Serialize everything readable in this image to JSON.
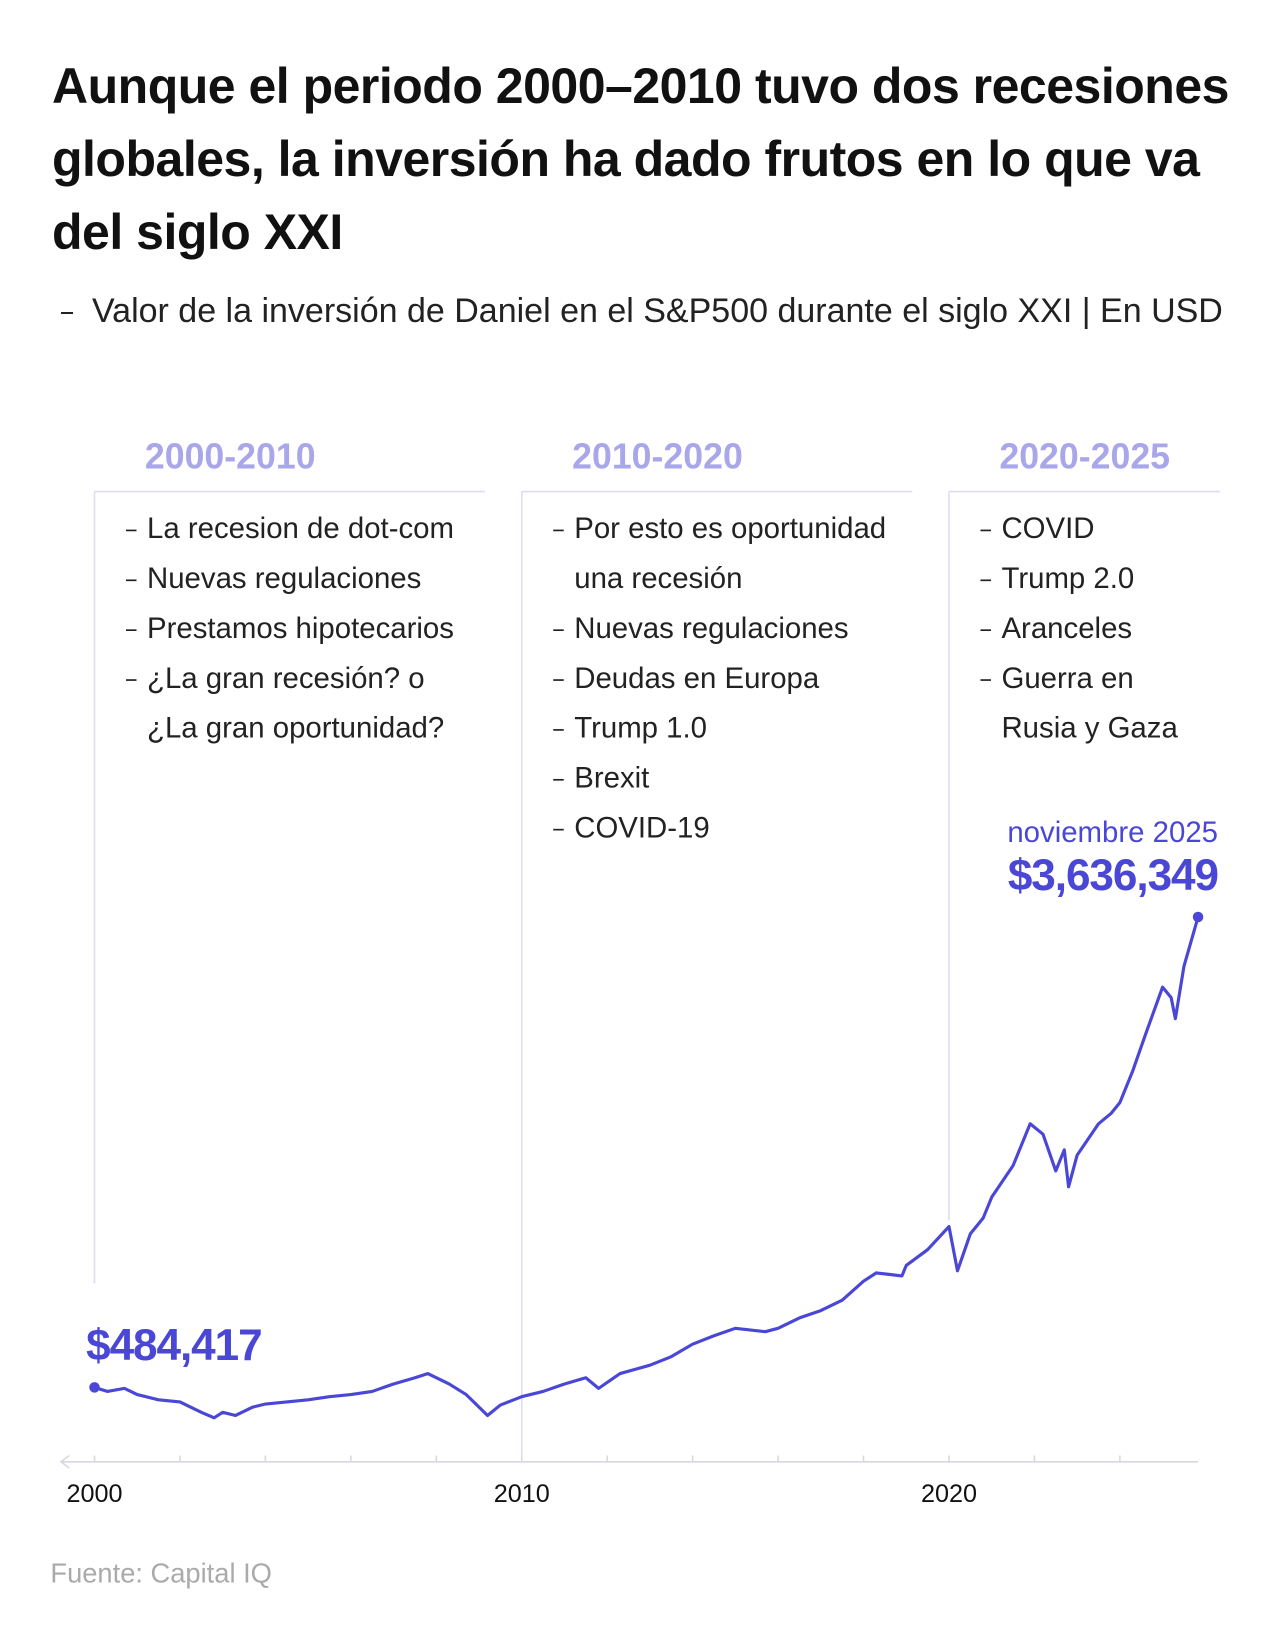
{
  "title": "Aunque el periodo 2000–2010 tuvo dos recesiones globales, la inversión ha dado frutos en lo que va del siglo XXI",
  "subtitle": "Valor de la inversión de Daniel en el S&P500 durante el siglo XXI | En USD",
  "source": "Fuente: Capital IQ",
  "chart_data": {
    "type": "line",
    "x": [
      2000.0,
      2000.3,
      2000.7,
      2001.0,
      2001.5,
      2002.0,
      2002.5,
      2002.8,
      2003.0,
      2003.3,
      2003.7,
      2004.0,
      2004.5,
      2005.0,
      2005.5,
      2006.0,
      2006.5,
      2007.0,
      2007.5,
      2007.8,
      2008.3,
      2008.7,
      2009.0,
      2009.2,
      2009.5,
      2010.0,
      2010.5,
      2011.0,
      2011.5,
      2011.8,
      2012.3,
      2013.0,
      2013.5,
      2014.0,
      2014.5,
      2015.0,
      2015.7,
      2016.0,
      2016.5,
      2017.0,
      2017.5,
      2018.0,
      2018.3,
      2018.9,
      2019.0,
      2019.5,
      2020.0,
      2020.2,
      2020.5,
      2020.8,
      2021.0,
      2021.5,
      2021.9,
      2022.2,
      2022.5,
      2022.7,
      2022.8,
      2023.0,
      2023.5,
      2023.8,
      2024.0,
      2024.3,
      2024.6,
      2025.0,
      2025.2,
      2025.3,
      2025.5,
      2025.83
    ],
    "series": [
      {
        "color": "#4a47d6",
        "values": [
          484417,
          457000,
          478000,
          436000,
          401000,
          387000,
          317000,
          281000,
          317000,
          296000,
          352000,
          373000,
          387000,
          401000,
          422000,
          436000,
          457000,
          507000,
          549000,
          577000,
          507000,
          436000,
          352000,
          296000,
          366000,
          422000,
          457000,
          507000,
          549000,
          478000,
          577000,
          633000,
          690000,
          774000,
          830000,
          880000,
          858000,
          880000,
          950000,
          999000,
          1069000,
          1196000,
          1252000,
          1231000,
          1302000,
          1407000,
          1562000,
          1266000,
          1513000,
          1618000,
          1759000,
          1970000,
          2251000,
          2181000,
          1935000,
          2076000,
          1829000,
          2040000,
          2251000,
          2322000,
          2392000,
          2603000,
          2850000,
          3166000,
          3096000,
          2955000,
          3307000,
          3636349
        ]
      }
    ],
    "annotations": [
      {
        "label": "$484,417",
        "value": 484417
      },
      {
        "date": "noviembre 2025",
        "label": "$3,636,349",
        "value": 3636349
      }
    ],
    "xlim": [
      2000,
      2025.83
    ],
    "xticks": [
      2000,
      2010,
      2020
    ],
    "minor_xticks": [
      2002,
      2004,
      2006,
      2008,
      2012,
      2014,
      2016,
      2018,
      2022,
      2024
    ],
    "ylim": [
      0,
      4000000
    ],
    "periods": [
      {
        "label": "2000-2010",
        "start": 2000,
        "items": [
          [
            "La recesion de dot-com"
          ],
          [
            "Nuevas regulaciones"
          ],
          [
            "Prestamos hipotecarios"
          ],
          [
            "¿La gran recesión? o",
            "¿La gran oportunidad?"
          ]
        ]
      },
      {
        "label": "2010-2020",
        "start": 2010,
        "items": [
          [
            "Por esto es oportunidad",
            "una recesión"
          ],
          [
            "Nuevas regulaciones"
          ],
          [
            "Deudas en Europa"
          ],
          [
            "Trump 1.0"
          ],
          [
            "Brexit"
          ],
          [
            "COVID-19"
          ]
        ]
      },
      {
        "label": "2020-2025",
        "start": 2020,
        "items": [
          [
            "COVID"
          ],
          [
            "Trump 2.0"
          ],
          [
            "Aranceles"
          ],
          [
            "Guerra en",
            "Rusia y Gaza"
          ]
        ]
      }
    ]
  }
}
